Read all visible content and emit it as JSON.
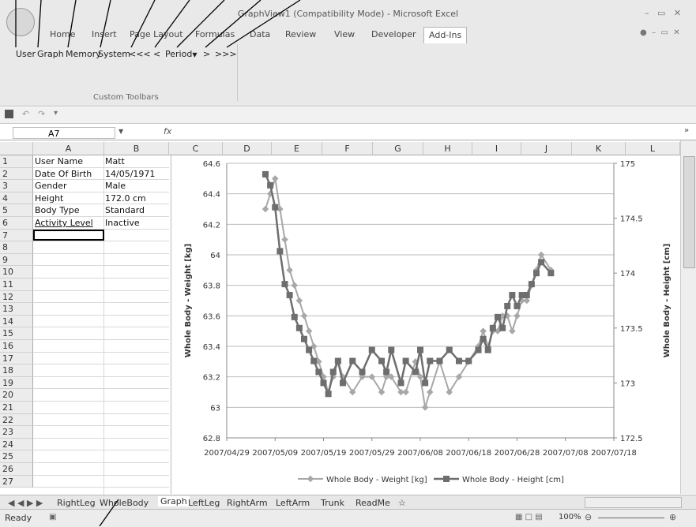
{
  "window": {
    "title": "GraphView1 (Compatibility Mode) - Microsoft Excel"
  },
  "ribbon_tabs": [
    "Home",
    "Insert",
    "Page Layout",
    "Formulas",
    "Data",
    "Review",
    "View",
    "Developer",
    "Add-Ins"
  ],
  "toolbar": {
    "user": "User",
    "graph": "Graph",
    "memory": "Memory",
    "system": "System",
    "back2": "<<<",
    "back1": "<",
    "period": "Period",
    "fwd1": ">",
    "fwd2": ">>>",
    "group_label": "Custom Toolbars"
  },
  "formula_bar": {
    "name_box": "A7",
    "fx": "fx",
    "value": ""
  },
  "columns": [
    "A",
    "B",
    "C",
    "D",
    "E",
    "F",
    "G",
    "H",
    "I",
    "J",
    "K",
    "L"
  ],
  "rows": [
    "1",
    "2",
    "3",
    "4",
    "5",
    "6",
    "7",
    "8",
    "9",
    "10",
    "11",
    "12",
    "13",
    "14",
    "15",
    "16",
    "17",
    "18",
    "19",
    "20",
    "21",
    "22",
    "23",
    "24",
    "25",
    "26",
    "27"
  ],
  "cells": [
    {
      "a": "User Name",
      "b": "Matt"
    },
    {
      "a": "Date Of Birth",
      "b": "14/05/1971"
    },
    {
      "a": "Gender",
      "b": "Male"
    },
    {
      "a": "Height",
      "b": "172.0 cm"
    },
    {
      "a": "Body Type",
      "b": "Standard"
    },
    {
      "a": "Activity Level",
      "b": "Inactive"
    }
  ],
  "sheets": [
    "RightLeg",
    "WholeBody",
    "Graph",
    "LeftLeg",
    "RightArm",
    "LeftArm",
    "Trunk",
    "ReadMe"
  ],
  "status": {
    "ready": "Ready",
    "zoom": "100%"
  },
  "colors": {
    "weight": "#a8a8a8",
    "height": "#6e6e6e"
  },
  "chart_data": {
    "type": "line",
    "xlabel": "",
    "ylabel": "Whole Body - Weight [kg]",
    "y2label": "Whole Body - Height [cm]",
    "x_ticks": [
      "2007/04/29",
      "2007/05/09",
      "2007/05/19",
      "2007/05/29",
      "2007/06/08",
      "2007/06/18",
      "2007/06/28",
      "2007/07/08",
      "2007/07/18"
    ],
    "ylim": [
      62.8,
      64.6
    ],
    "y_ticks": [
      "62.8",
      "63",
      "63.2",
      "63.4",
      "63.6",
      "63.8",
      "64",
      "64.2",
      "64.4",
      "64.6"
    ],
    "y2lim": [
      172.5,
      175
    ],
    "y2_ticks": [
      "172.5",
      "173",
      "173.5",
      "174",
      "174.5",
      "175"
    ],
    "series": [
      {
        "name": "Whole Body - Weight [kg]",
        "axis": "left",
        "x": [
          "2007-05-07",
          "2007-05-08",
          "2007-05-09",
          "2007-05-10",
          "2007-05-11",
          "2007-05-12",
          "2007-05-13",
          "2007-05-14",
          "2007-05-15",
          "2007-05-16",
          "2007-05-17",
          "2007-05-18",
          "2007-05-19",
          "2007-05-20",
          "2007-05-21",
          "2007-05-22",
          "2007-05-23",
          "2007-05-25",
          "2007-05-27",
          "2007-05-29",
          "2007-05-31",
          "2007-06-01",
          "2007-06-02",
          "2007-06-04",
          "2007-06-05",
          "2007-06-07",
          "2007-06-08",
          "2007-06-09",
          "2007-06-10",
          "2007-06-12",
          "2007-06-14",
          "2007-06-16",
          "2007-06-18",
          "2007-06-20",
          "2007-06-21",
          "2007-06-22",
          "2007-06-23",
          "2007-06-24",
          "2007-06-25",
          "2007-06-26",
          "2007-06-27",
          "2007-06-28",
          "2007-06-29",
          "2007-06-30",
          "2007-07-01",
          "2007-07-02",
          "2007-07-03",
          "2007-07-05"
        ],
        "y": [
          64.3,
          64.4,
          64.5,
          64.3,
          64.1,
          63.9,
          63.8,
          63.7,
          63.6,
          63.5,
          63.4,
          63.3,
          63.2,
          63.1,
          63.2,
          63.3,
          63.2,
          63.1,
          63.2,
          63.2,
          63.1,
          63.2,
          63.2,
          63.1,
          63.1,
          63.3,
          63.2,
          63.0,
          63.1,
          63.3,
          63.1,
          63.2,
          63.3,
          63.4,
          63.5,
          63.4,
          63.5,
          63.5,
          63.6,
          63.6,
          63.5,
          63.6,
          63.7,
          63.7,
          63.8,
          63.9,
          64.0,
          63.9
        ]
      },
      {
        "name": "Whole Body - Height [cm]",
        "axis": "right",
        "x": [
          "2007-05-07",
          "2007-05-08",
          "2007-05-09",
          "2007-05-10",
          "2007-05-11",
          "2007-05-12",
          "2007-05-13",
          "2007-05-14",
          "2007-05-15",
          "2007-05-16",
          "2007-05-17",
          "2007-05-18",
          "2007-05-19",
          "2007-05-20",
          "2007-05-21",
          "2007-05-22",
          "2007-05-23",
          "2007-05-25",
          "2007-05-27",
          "2007-05-29",
          "2007-05-31",
          "2007-06-01",
          "2007-06-02",
          "2007-06-04",
          "2007-06-05",
          "2007-06-07",
          "2007-06-08",
          "2007-06-09",
          "2007-06-10",
          "2007-06-12",
          "2007-06-14",
          "2007-06-16",
          "2007-06-18",
          "2007-06-20",
          "2007-06-21",
          "2007-06-22",
          "2007-06-23",
          "2007-06-24",
          "2007-06-25",
          "2007-06-26",
          "2007-06-27",
          "2007-06-28",
          "2007-06-29",
          "2007-06-30",
          "2007-07-01",
          "2007-07-02",
          "2007-07-03",
          "2007-07-05"
        ],
        "y": [
          174.9,
          174.8,
          174.6,
          174.2,
          173.9,
          173.8,
          173.6,
          173.5,
          173.4,
          173.3,
          173.2,
          173.1,
          173.0,
          172.9,
          173.1,
          173.2,
          173.0,
          173.2,
          173.1,
          173.3,
          173.2,
          173.1,
          173.3,
          173.0,
          173.2,
          173.1,
          173.3,
          173.0,
          173.2,
          173.2,
          173.3,
          173.2,
          173.2,
          173.3,
          173.4,
          173.3,
          173.5,
          173.6,
          173.5,
          173.7,
          173.8,
          173.7,
          173.8,
          173.8,
          173.9,
          174.0,
          174.1,
          174.0
        ]
      }
    ]
  }
}
